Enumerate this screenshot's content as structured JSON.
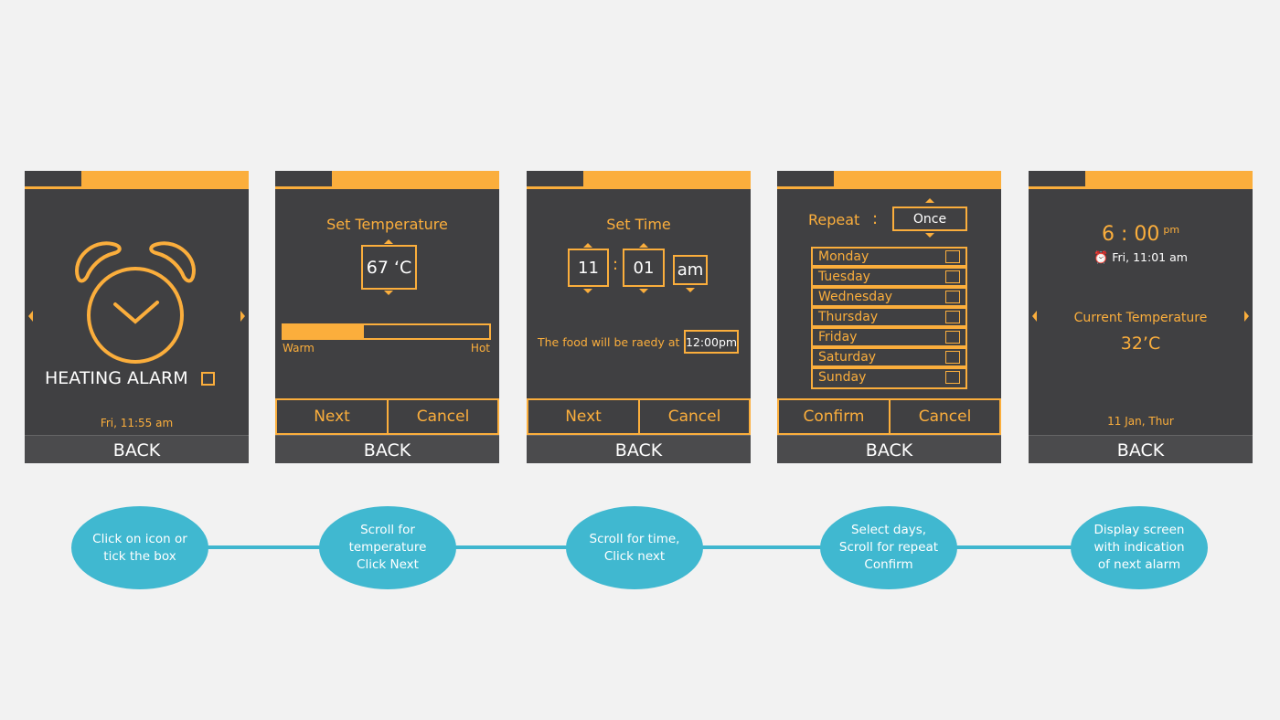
{
  "colors": {
    "accent": "#fbae3c",
    "screen": "#404042",
    "flow": "#40b8d0"
  },
  "back_label": "BACK",
  "screen1": {
    "title": "HEATING ALARM",
    "checked": false,
    "datetime": "Fri, 11:55 am",
    "icon": "alarm-clock-icon"
  },
  "screen2": {
    "title": "Set Temperature",
    "value": "67 ‘C",
    "slider_percent": 39,
    "min_label": "Warm",
    "max_label": "Hot",
    "next": "Next",
    "cancel": "Cancel"
  },
  "screen3": {
    "title": "Set Time",
    "hour": "11",
    "separator": ":",
    "minute": "01",
    "ampm": "am",
    "ready_text": "The food will be raedy at",
    "ready_time": "12:00pm",
    "next": "Next",
    "cancel": "Cancel"
  },
  "screen4": {
    "repeat_label": "Repeat",
    "colon": ":",
    "repeat_value": "Once",
    "days": [
      "Monday",
      "Tuesday",
      "Wednesday",
      "Thursday",
      "Friday",
      "Saturday",
      "Sunday"
    ],
    "confirm": "Confirm",
    "cancel": "Cancel"
  },
  "screen5": {
    "time": "6 : 00",
    "ampm": "pm",
    "alarm": "Fri, 11:01 am",
    "temp_label": "Current Temperature",
    "temp_value": "32’C",
    "date": "11 Jan, Thur"
  },
  "flow": [
    "Click on icon or tick the box",
    "Scroll for temperature Click Next",
    "Scroll for time, Click next",
    "Select days, Scroll for repeat Confirm",
    "Display screen with indication of next alarm"
  ]
}
